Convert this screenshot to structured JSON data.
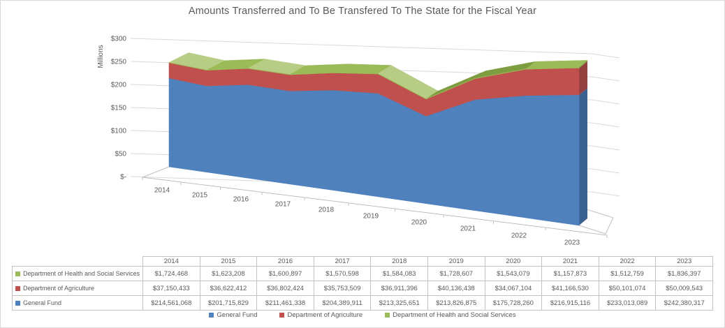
{
  "title": "Amounts Transferred and To Be Transfered To The State for the Fiscal Year",
  "chart_data": {
    "type": "area",
    "variant": "3d-stacked-area",
    "title": "Amounts Transferred and To Be Transfered To The State for the Fiscal Year",
    "categories": [
      "2014",
      "2015",
      "2016",
      "2017",
      "2018",
      "2019",
      "2020",
      "2021",
      "2022",
      "2023"
    ],
    "series": [
      {
        "name": "General Fund",
        "color": "#4F81BD",
        "values": [
          214561068,
          201715829,
          211461338,
          204389911,
          213325651,
          213826875,
          175728260,
          216915116,
          233013089,
          242380317
        ]
      },
      {
        "name": "Department of Agriculture",
        "color": "#C0504D",
        "values": [
          37150433,
          36622412,
          36802424,
          35753509,
          36911396,
          40136438,
          34067104,
          41166530,
          50101074,
          50009543
        ]
      },
      {
        "name": "Department of Health and Social Services",
        "color": "#9BBB59",
        "values": [
          1724468,
          1623208,
          1600897,
          1570598,
          1584083,
          1728607,
          1543079,
          1157873,
          1512759,
          1836397
        ]
      }
    ],
    "xlabel": "",
    "ylabel": "Millions",
    "y_ticks": [
      "$300",
      "$250",
      "$200",
      "$150",
      "$100",
      "$50",
      "$-"
    ],
    "ylim": [
      0,
      300000000
    ],
    "grid": true,
    "legend_position": "bottom"
  },
  "table": {
    "corner_label": "",
    "columns": [
      "2014",
      "2015",
      "2016",
      "2017",
      "2018",
      "2019",
      "2020",
      "2021",
      "2022",
      "2023"
    ],
    "rows": [
      {
        "label": "Department of Health and Social Services",
        "swatch_color": "#9BBB59",
        "values": [
          "$1,724,468",
          "$1,623,208",
          "$1,600,897",
          "$1,570,598",
          "$1,584,083",
          "$1,728,607",
          "$1,543,079",
          "$1,157,873",
          "$1,512,759",
          "$1,836,397"
        ]
      },
      {
        "label": "Department of Agriculture",
        "swatch_color": "#C0504D",
        "values": [
          "$37,150,433",
          "$36,622,412",
          "$36,802,424",
          "$35,753,509",
          "$36,911,396",
          "$40,136,438",
          "$34,067,104",
          "$41,166,530",
          "$50,101,074",
          "$50,009,543"
        ]
      },
      {
        "label": "General Fund",
        "swatch_color": "#4F81BD",
        "values": [
          "$214,561,068",
          "$201,715,829",
          "$211,461,338",
          "$204,389,911",
          "$213,325,651",
          "$213,826,875",
          "$175,728,260",
          "$216,915,116",
          "$233,013,089",
          "$242,380,317"
        ]
      }
    ]
  },
  "legend": {
    "items": [
      {
        "label": "General Fund",
        "color": "#4F81BD"
      },
      {
        "label": "Department of Agriculture",
        "color": "#C0504D"
      },
      {
        "label": "Department of Health and Social Services",
        "color": "#9BBB59"
      }
    ]
  },
  "colors": {
    "text": "#595959",
    "gridline": "#D9D9D9",
    "floor_line": "#BFBFBF",
    "table_border": "#C3C3C3",
    "blue_side": "#3B6190",
    "red_side": "#93403E",
    "green_side": "#76913F",
    "green_top_light": "#B7CD85",
    "green_top_dark": "#7E9C40"
  }
}
